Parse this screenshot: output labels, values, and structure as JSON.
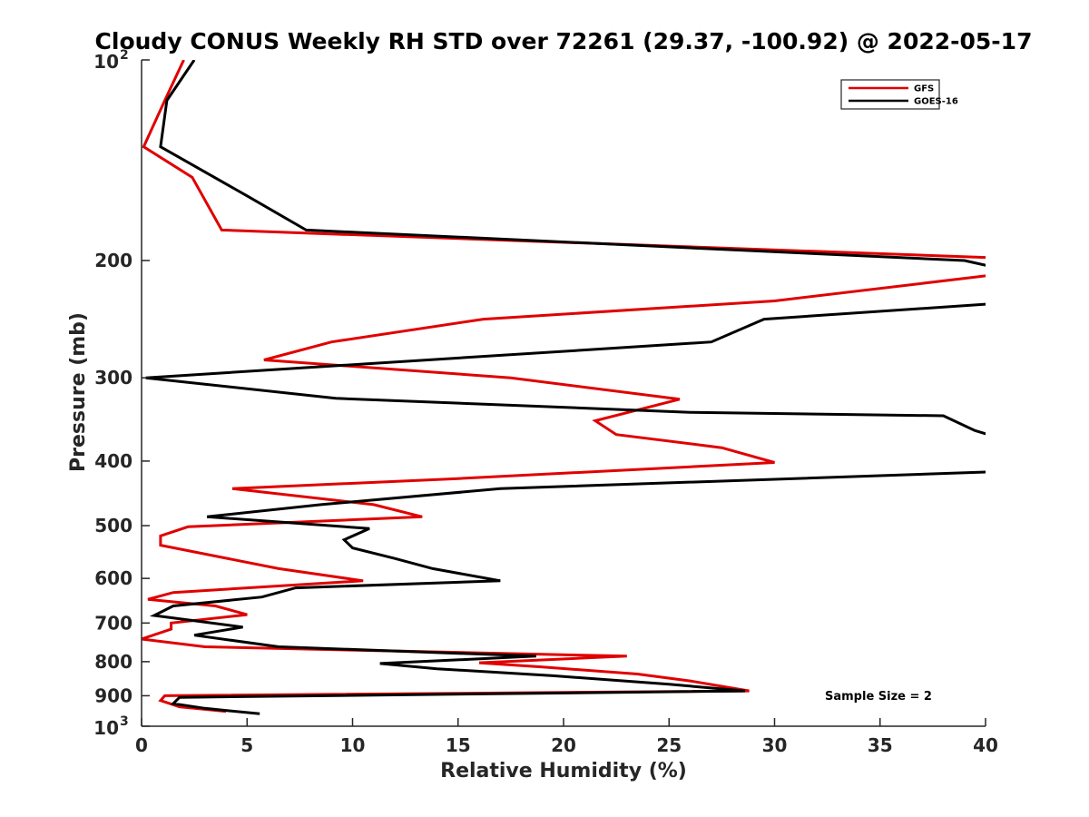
{
  "chart_data": {
    "type": "line",
    "title": "Cloudy CONUS Weekly RH STD over 72261 (29.37, -100.92) @ 2022-05-17",
    "xlabel": "Relative Humidity (%)",
    "ylabel": "Pressure (mb)",
    "xlim": [
      0,
      40
    ],
    "ylim": [
      100,
      1000
    ],
    "y_scale": "log",
    "y_reversed": true,
    "x_ticks": [
      0,
      5,
      10,
      15,
      20,
      25,
      30,
      35,
      40
    ],
    "y_ticks": [
      200,
      300,
      400,
      500,
      600,
      700,
      800,
      900
    ],
    "y_tick_labels": [
      "200",
      "300",
      "400",
      "500",
      "600",
      "700",
      "800",
      "900"
    ],
    "y_end_labels": [
      {
        "value": 100,
        "base": "10",
        "exp": "2"
      },
      {
        "value": 1000,
        "base": "10",
        "exp": "3"
      }
    ],
    "grid": false,
    "legend_position": "top-right",
    "annotation": "Sample Size = 2",
    "series": [
      {
        "name": "GFS",
        "color": "#e00000",
        "points": [
          [
            2.0,
            100
          ],
          [
            1.1,
            115
          ],
          [
            0.1,
            135
          ],
          [
            2.4,
            150
          ],
          [
            3.8,
            180
          ],
          [
            40.2,
            198
          ],
          [
            40.5,
            210
          ],
          [
            30.0,
            230
          ],
          [
            16.2,
            245
          ],
          [
            9.0,
            265
          ],
          [
            5.8,
            282
          ],
          [
            17.5,
            300
          ],
          [
            25.5,
            323
          ],
          [
            21.5,
            348
          ],
          [
            22.5,
            365
          ],
          [
            27.5,
            382
          ],
          [
            30.0,
            402
          ],
          [
            15.0,
            425
          ],
          [
            4.3,
            440
          ],
          [
            11.0,
            465
          ],
          [
            13.3,
            485
          ],
          [
            2.2,
            502
          ],
          [
            0.9,
            518
          ],
          [
            0.9,
            535
          ],
          [
            6.5,
            580
          ],
          [
            10.5,
            605
          ],
          [
            1.5,
            630
          ],
          [
            0.3,
            645
          ],
          [
            3.5,
            660
          ],
          [
            5.0,
            680
          ],
          [
            1.4,
            700
          ],
          [
            1.4,
            715
          ],
          [
            0.0,
            740
          ],
          [
            3.0,
            760
          ],
          [
            23.0,
            785
          ],
          [
            16.0,
            803
          ],
          [
            19.0,
            815
          ],
          [
            23.5,
            835
          ],
          [
            26.0,
            855
          ],
          [
            28.8,
            885
          ],
          [
            1.1,
            900
          ],
          [
            0.9,
            915
          ],
          [
            1.8,
            935
          ],
          [
            4.0,
            950
          ]
        ]
      },
      {
        "name": "GOES-16",
        "color": "#000000",
        "points": [
          [
            2.5,
            100
          ],
          [
            1.2,
            115
          ],
          [
            0.9,
            135
          ],
          [
            5.0,
            160
          ],
          [
            7.8,
            180
          ],
          [
            39.0,
            200
          ],
          [
            40.5,
            205
          ],
          [
            40.5,
            232
          ],
          [
            29.5,
            245
          ],
          [
            27.0,
            265
          ],
          [
            0.2,
            300
          ],
          [
            9.2,
            322
          ],
          [
            26.0,
            338
          ],
          [
            38.0,
            342
          ],
          [
            39.5,
            360
          ],
          [
            40.5,
            368
          ],
          [
            40.5,
            415
          ],
          [
            17.0,
            440
          ],
          [
            8.5,
            465
          ],
          [
            3.1,
            485
          ],
          [
            10.8,
            505
          ],
          [
            9.6,
            525
          ],
          [
            10.0,
            540
          ],
          [
            12.0,
            560
          ],
          [
            13.8,
            580
          ],
          [
            17.0,
            605
          ],
          [
            7.3,
            620
          ],
          [
            5.7,
            640
          ],
          [
            1.5,
            660
          ],
          [
            0.6,
            682
          ],
          [
            4.8,
            710
          ],
          [
            2.5,
            730
          ],
          [
            6.5,
            760
          ],
          [
            18.7,
            785
          ],
          [
            11.3,
            805
          ],
          [
            14.0,
            820
          ],
          [
            19.5,
            840
          ],
          [
            25.0,
            865
          ],
          [
            28.6,
            885
          ],
          [
            1.8,
            905
          ],
          [
            1.5,
            925
          ],
          [
            3.0,
            940
          ],
          [
            5.6,
            958
          ]
        ]
      }
    ]
  }
}
